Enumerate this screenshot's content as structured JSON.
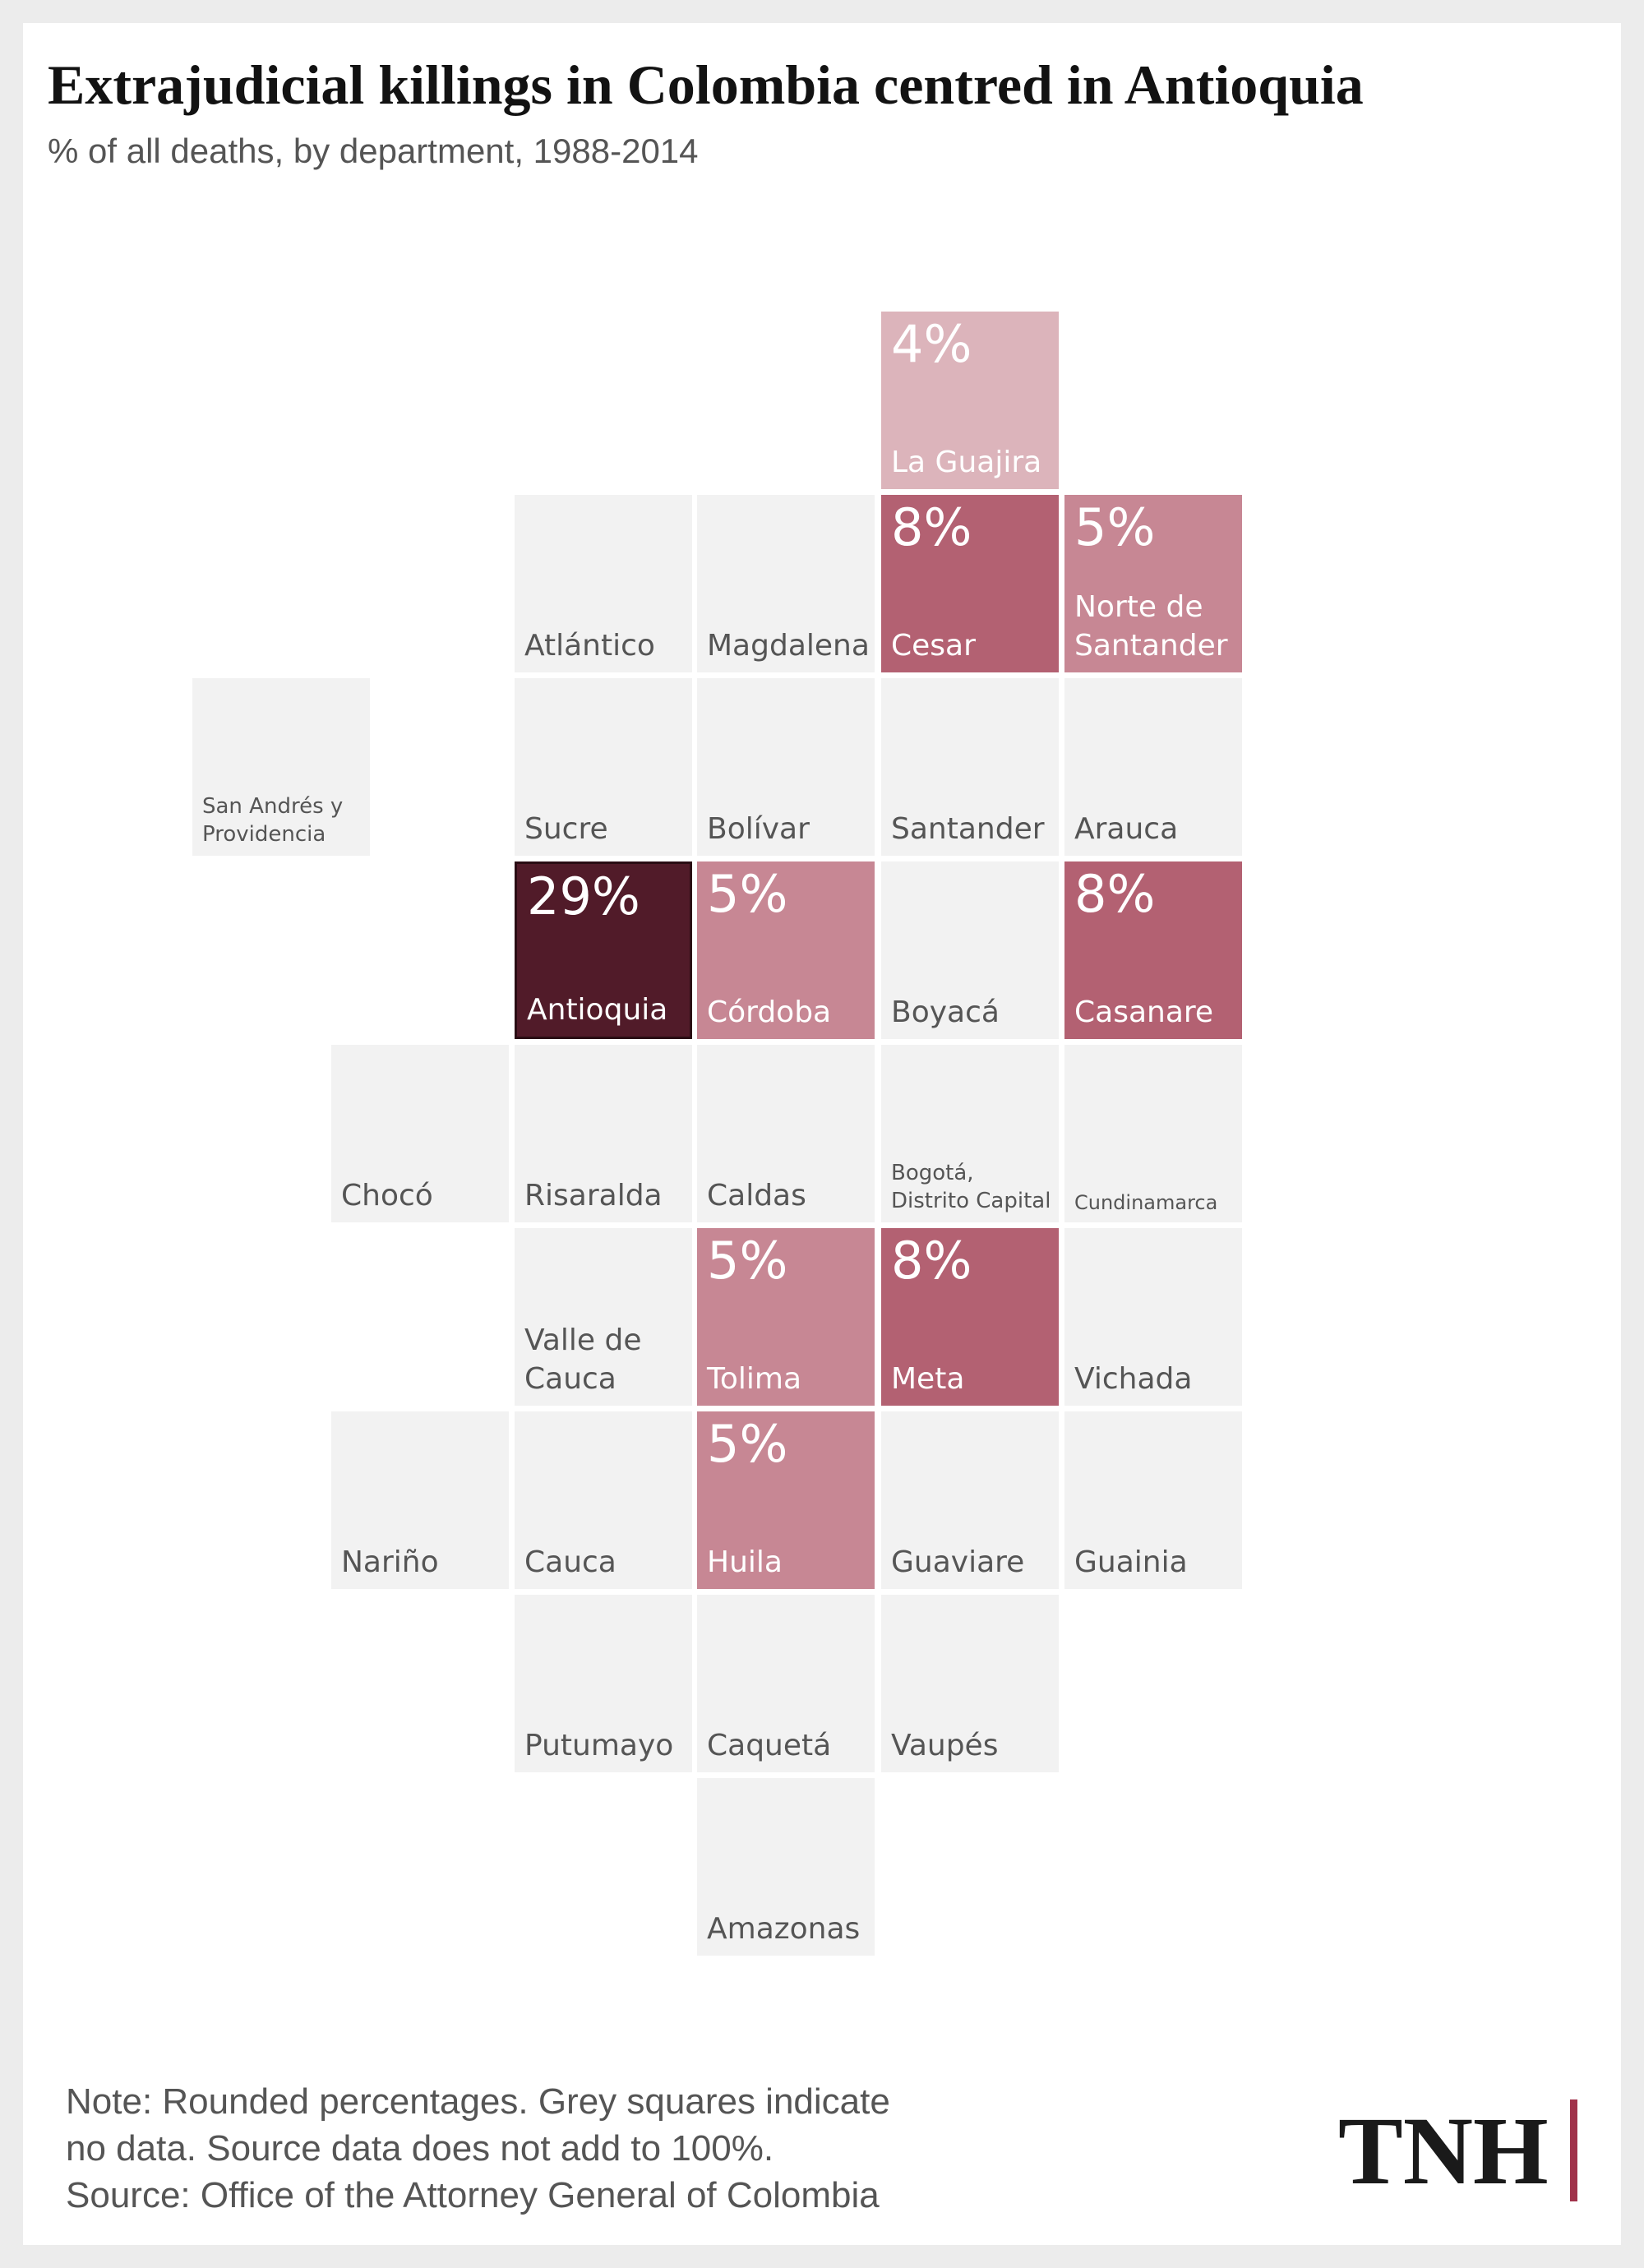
{
  "title": "Extrajudicial killings in Colombia centred in Antioquia",
  "subtitle": "% of all deaths, by department, 1988-2014",
  "colors": {
    "no_data": "#f2f2f2",
    "name_on_grey": "#555555",
    "name_on_color": "#ffffff",
    "scale": {
      "4%": "#dcb4bb",
      "5%": "#c78794",
      "8%": "#b36172",
      "29%": "#511b29"
    },
    "antioquia_border": "#2a0d14",
    "logo_bar": "#a0324a"
  },
  "departments": [
    {
      "name": "La Guajira",
      "value": "4%",
      "row": 0,
      "col": 3
    },
    {
      "name": "Atlántico",
      "value": null,
      "row": 1,
      "col": 1
    },
    {
      "name": "Magdalena",
      "value": null,
      "row": 1,
      "col": 2
    },
    {
      "name": "Cesar",
      "value": "8%",
      "row": 1,
      "col": 3
    },
    {
      "name": "Norte de\nSantander",
      "value": "5%",
      "row": 1,
      "col": 4
    },
    {
      "name": "San Andrés y\nProvidencia",
      "value": null,
      "row": 2,
      "col": -1
    },
    {
      "name": "Sucre",
      "value": null,
      "row": 2,
      "col": 1
    },
    {
      "name": "Bolívar",
      "value": null,
      "row": 2,
      "col": 2
    },
    {
      "name": "Santander",
      "value": null,
      "row": 2,
      "col": 3
    },
    {
      "name": "Arauca",
      "value": null,
      "row": 2,
      "col": 4
    },
    {
      "name": "Antioquia",
      "value": "29%",
      "row": 3,
      "col": 1
    },
    {
      "name": "Córdoba",
      "value": "5%",
      "row": 3,
      "col": 2
    },
    {
      "name": "Boyacá",
      "value": null,
      "row": 3,
      "col": 3
    },
    {
      "name": "Casanare",
      "value": "8%",
      "row": 3,
      "col": 4
    },
    {
      "name": "Chocó",
      "value": null,
      "row": 4,
      "col": 0
    },
    {
      "name": "Risaralda",
      "value": null,
      "row": 4,
      "col": 1
    },
    {
      "name": "Caldas",
      "value": null,
      "row": 4,
      "col": 2
    },
    {
      "name": "Bogotá,\nDistrito Capital",
      "value": null,
      "row": 4,
      "col": 3
    },
    {
      "name": "Cundinamarca",
      "value": null,
      "row": 4,
      "col": 4
    },
    {
      "name": "Valle de\nCauca",
      "value": null,
      "row": 5,
      "col": 1
    },
    {
      "name": "Tolima",
      "value": "5%",
      "row": 5,
      "col": 2
    },
    {
      "name": "Meta",
      "value": "8%",
      "row": 5,
      "col": 3
    },
    {
      "name": "Vichada",
      "value": null,
      "row": 5,
      "col": 4
    },
    {
      "name": "Nariño",
      "value": null,
      "row": 6,
      "col": 0
    },
    {
      "name": "Cauca",
      "value": null,
      "row": 6,
      "col": 1
    },
    {
      "name": "Huila",
      "value": "5%",
      "row": 6,
      "col": 2
    },
    {
      "name": "Guaviare",
      "value": null,
      "row": 6,
      "col": 3
    },
    {
      "name": "Guainia",
      "value": null,
      "row": 6,
      "col": 4
    },
    {
      "name": "Putumayo",
      "value": null,
      "row": 7,
      "col": 1
    },
    {
      "name": "Caquetá",
      "value": null,
      "row": 7,
      "col": 2
    },
    {
      "name": "Vaupés",
      "value": null,
      "row": 7,
      "col": 3
    },
    {
      "name": "Amazonas",
      "value": null,
      "row": 8,
      "col": 2
    }
  ],
  "note_lines": [
    "Note: Rounded percentages. Grey squares indicate",
    "no data. Source data does not add to 100%.",
    "Source: Office of the Attorney General of Colombia"
  ],
  "logo": "TNH"
}
